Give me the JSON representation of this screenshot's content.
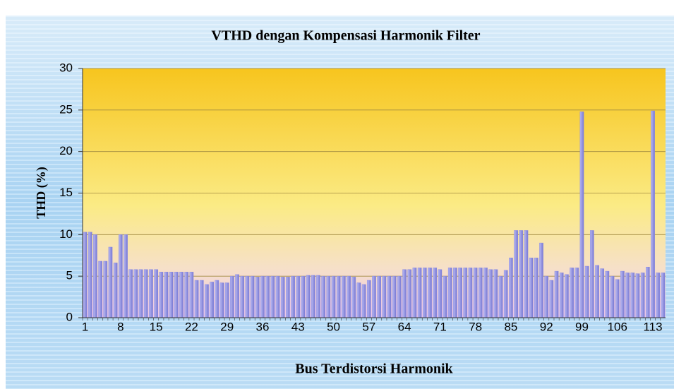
{
  "chart_data": {
    "type": "bar",
    "title": "VTHD dengan Kompensasi Harmonik Filter",
    "x_label": "Bus Terdistorsi Harmonik",
    "y_label": "THD (%)",
    "categories": [
      "1",
      null,
      null,
      null,
      null,
      null,
      null,
      "8",
      null,
      null,
      null,
      null,
      null,
      null,
      "15",
      null,
      null,
      null,
      null,
      null,
      null,
      "22",
      null,
      null,
      null,
      null,
      null,
      null,
      "29",
      null,
      null,
      null,
      null,
      null,
      null,
      "36",
      null,
      null,
      null,
      null,
      null,
      null,
      "43",
      null,
      null,
      null,
      null,
      null,
      null,
      "50",
      null,
      null,
      null,
      null,
      null,
      null,
      "57",
      null,
      null,
      null,
      null,
      null,
      null,
      "64",
      null,
      null,
      null,
      null,
      null,
      null,
      "71",
      null,
      null,
      null,
      null,
      null,
      null,
      "78",
      null,
      null,
      null,
      null,
      null,
      null,
      "85",
      null,
      null,
      null,
      null,
      null,
      null,
      "92",
      null,
      null,
      null,
      null,
      null,
      null,
      "99",
      null,
      null,
      null,
      null,
      null,
      null,
      "106",
      null,
      null,
      null,
      null,
      null,
      null,
      "113",
      null,
      null
    ],
    "values": [
      10.3,
      10.3,
      10.0,
      6.8,
      6.8,
      8.5,
      6.6,
      10.0,
      10.0,
      5.8,
      5.8,
      5.8,
      5.8,
      5.8,
      5.8,
      5.5,
      5.5,
      5.5,
      5.5,
      5.5,
      5.5,
      5.5,
      4.5,
      4.5,
      4.0,
      4.3,
      4.5,
      4.2,
      4.2,
      5.0,
      5.2,
      5.0,
      5.0,
      5.0,
      4.9,
      5.0,
      5.0,
      5.0,
      5.0,
      4.9,
      4.9,
      5.0,
      5.0,
      5.0,
      5.1,
      5.1,
      5.1,
      5.0,
      5.0,
      5.0,
      5.0,
      5.0,
      5.0,
      4.9,
      4.2,
      4.0,
      4.5,
      5.0,
      5.0,
      5.0,
      5.0,
      5.0,
      5.0,
      5.8,
      5.8,
      6.0,
      6.0,
      6.0,
      6.0,
      6.0,
      5.8,
      5.0,
      6.0,
      6.0,
      6.0,
      6.0,
      6.0,
      6.0,
      6.0,
      6.0,
      5.8,
      5.8,
      5.0,
      5.7,
      7.2,
      10.5,
      10.5,
      10.5,
      7.2,
      7.2,
      9.0,
      5.0,
      4.5,
      5.6,
      5.4,
      5.2,
      6.0,
      6.0,
      24.8,
      6.2,
      10.5,
      6.3,
      5.9,
      5.6,
      5.0,
      4.6,
      5.6,
      5.4,
      5.4,
      5.3,
      5.4,
      6.1,
      24.9,
      5.4,
      5.4
    ],
    "color": "#8c8ce0",
    "ylim": [
      0,
      30
    ],
    "yticks": [
      0,
      5,
      10,
      15,
      20,
      25,
      30
    ],
    "grid": true
  }
}
